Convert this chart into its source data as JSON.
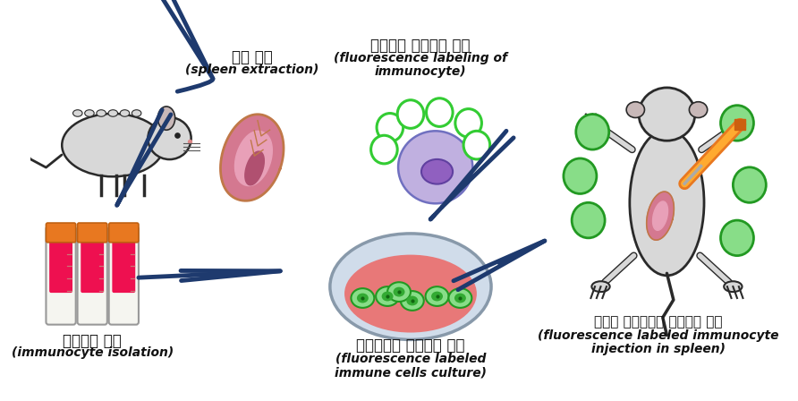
{
  "bg_color": "#ffffff",
  "arrow_color": "#1e3a6e",
  "arrow_lw": 3.5,
  "labels": {
    "spleen_extraction_ko": "비장 적출",
    "spleen_extraction_en": "(spleen extraction)",
    "fluorescence_labeling_ko": "면역세포 형광물지 표지",
    "fluorescence_labeling_en1": "(fluorescence labeling of",
    "fluorescence_labeling_en2": "immunocyte)",
    "immunocyte_isolation_ko": "면역세포 동정",
    "immunocyte_isolation_en": "(immunocyte isolation)",
    "culture_ko": "형광표지된 면역세포 베양",
    "culture_en1": "(fluorescence labeled",
    "culture_en2": "immune cells culture)",
    "injection_ko": "비장에 형광표지된 면역세포 주입",
    "injection_en1": "(fluorescence labeled immunocyte",
    "injection_en2": "injection in spleen)"
  }
}
